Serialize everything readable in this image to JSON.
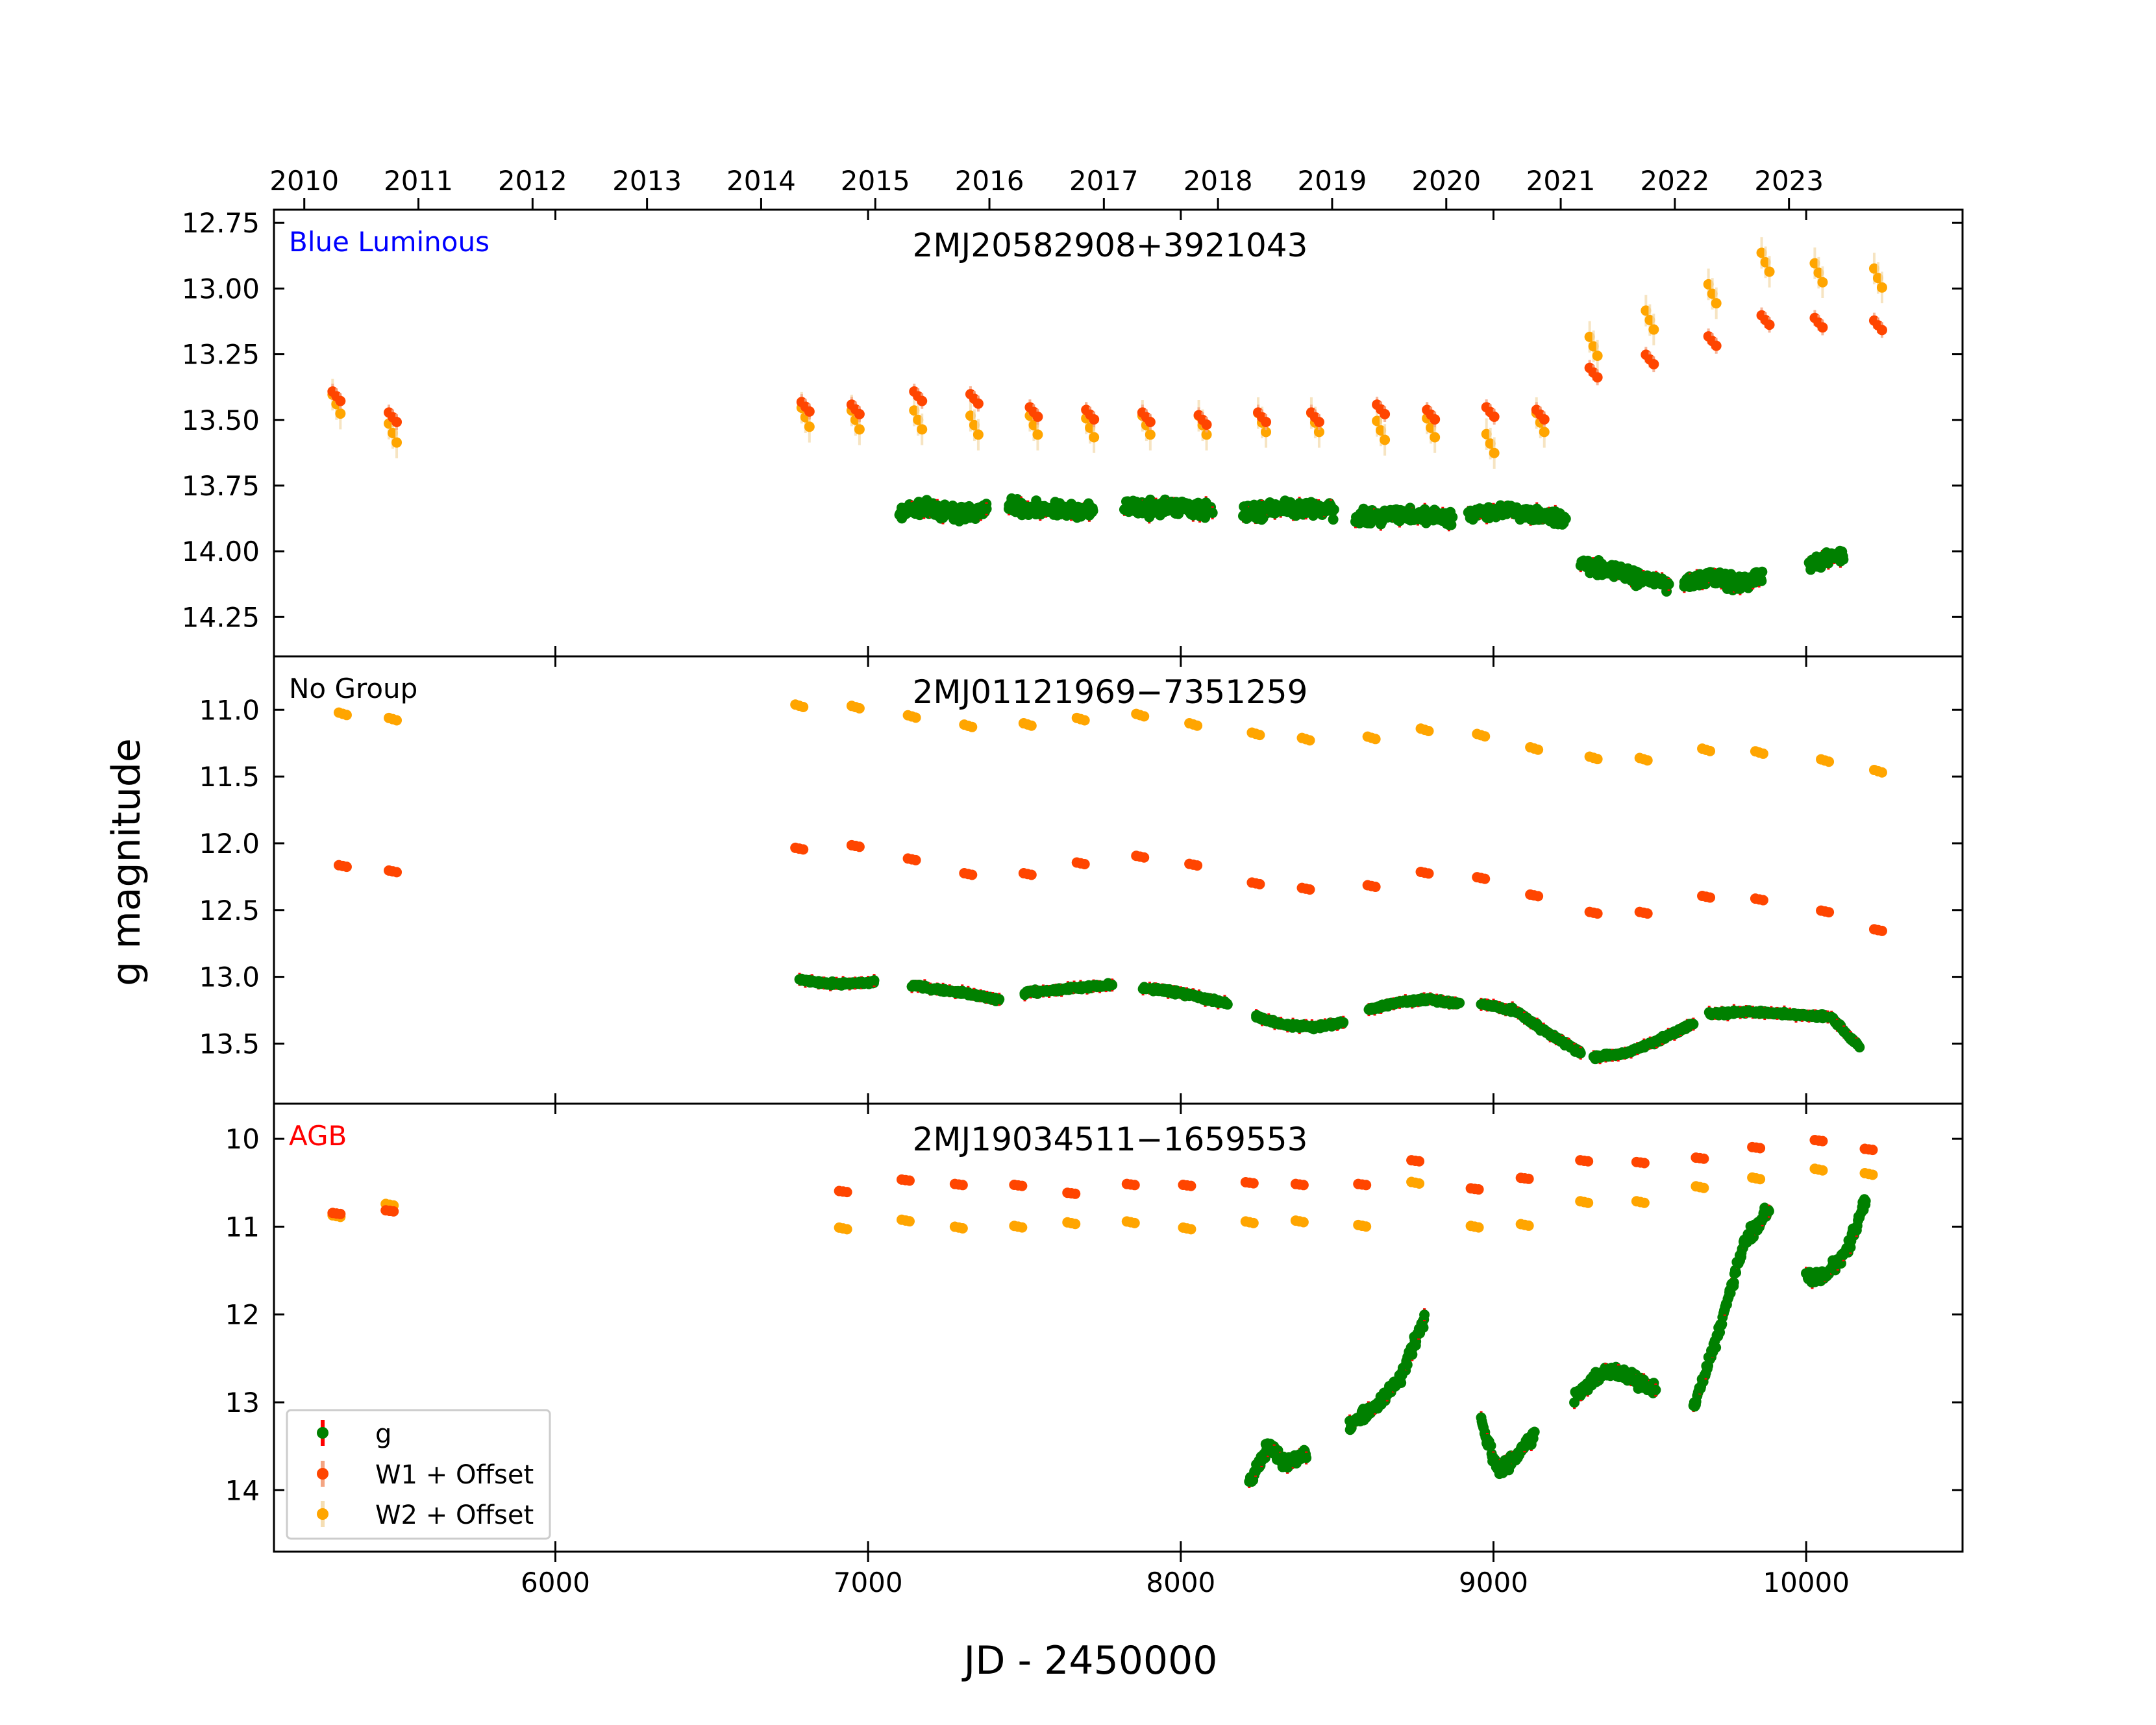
{
  "figure": {
    "xlabel": "JD - 2450000",
    "ylabel": "g magnitude",
    "xlim": [
      5100,
      10500
    ],
    "year_axis": [
      {
        "label": "2010",
        "jd": 5197
      },
      {
        "label": "2011",
        "jd": 5562
      },
      {
        "label": "2012",
        "jd": 5927
      },
      {
        "label": "2013",
        "jd": 6293
      },
      {
        "label": "2014",
        "jd": 6658
      },
      {
        "label": "2015",
        "jd": 7023
      },
      {
        "label": "2016",
        "jd": 7388
      },
      {
        "label": "2017",
        "jd": 7754
      },
      {
        "label": "2018",
        "jd": 8119
      },
      {
        "label": "2019",
        "jd": 8484
      },
      {
        "label": "2020",
        "jd": 8849
      },
      {
        "label": "2021",
        "jd": 9215
      },
      {
        "label": "2022",
        "jd": 9580
      },
      {
        "label": "2023",
        "jd": 9945
      }
    ],
    "x_ticks": [
      {
        "label": "6000",
        "value": 6000
      },
      {
        "label": "7000",
        "value": 7000
      },
      {
        "label": "8000",
        "value": 8000
      },
      {
        "label": "9000",
        "value": 9000
      },
      {
        "label": "10000",
        "value": 10000
      }
    ],
    "legend": {
      "position": "lower-left",
      "entries": [
        {
          "label": "g",
          "color": "#008000"
        },
        {
          "label": "W1 + Offset",
          "color": "#ff4500"
        },
        {
          "label": "W2 + Offset",
          "color": "#ffa500"
        }
      ]
    }
  },
  "chart_data": [
    {
      "type": "scatter",
      "group": "Blue Luminous",
      "group_color": "#0000ff",
      "title": "2MJ20582908+3921043",
      "ylim": [
        14.4,
        12.7
      ],
      "yticks": [
        {
          "label": "12.75",
          "value": 12.75
        },
        {
          "label": "13.00",
          "value": 13.0
        },
        {
          "label": "13.25",
          "value": 13.25
        },
        {
          "label": "13.50",
          "value": 13.5
        },
        {
          "label": "13.75",
          "value": 13.75
        },
        {
          "label": "14.00",
          "value": 14.0
        },
        {
          "label": "14.25",
          "value": 14.25
        }
      ],
      "W1": {
        "x": [
          5300,
          5480,
          6800,
          6960,
          7160,
          7340,
          7530,
          7710,
          7890,
          8070,
          8260,
          8430,
          8640,
          8800,
          8990,
          9150,
          9320,
          9500,
          9700,
          9870,
          10040,
          10230
        ],
        "y": [
          13.41,
          13.49,
          13.45,
          13.46,
          13.41,
          13.42,
          13.47,
          13.48,
          13.49,
          13.5,
          13.49,
          13.49,
          13.46,
          13.48,
          13.47,
          13.48,
          13.32,
          13.27,
          13.2,
          13.12,
          13.13,
          13.14
        ]
      },
      "W2": {
        "x": [
          5300,
          5480,
          6800,
          6960,
          7160,
          7340,
          7530,
          7710,
          7890,
          8070,
          8260,
          8430,
          8640,
          8800,
          8990,
          9150,
          9320,
          9500,
          9700,
          9870,
          10040,
          10230
        ],
        "y": [
          13.44,
          13.55,
          13.49,
          13.5,
          13.5,
          13.52,
          13.52,
          13.53,
          13.52,
          13.52,
          13.51,
          13.51,
          13.54,
          13.53,
          13.59,
          13.51,
          13.22,
          13.12,
          13.02,
          12.9,
          12.94,
          12.96
        ]
      },
      "g_segments": [
        {
          "x0": 7100,
          "x1": 7380,
          "y": [
            13.85,
            13.83,
            13.85,
            13.86,
            13.84
          ]
        },
        {
          "x0": 7450,
          "x1": 7720,
          "y": [
            13.82,
            13.84,
            13.85,
            13.84
          ]
        },
        {
          "x0": 7820,
          "x1": 8100,
          "y": [
            13.83,
            13.84,
            13.83,
            13.85
          ]
        },
        {
          "x0": 8200,
          "x1": 8490,
          "y": [
            13.86,
            13.84,
            13.83,
            13.85
          ]
        },
        {
          "x0": 8560,
          "x1": 8870,
          "y": [
            13.87,
            13.86,
            13.86,
            13.87
          ]
        },
        {
          "x0": 8920,
          "x1": 9230,
          "y": [
            13.86,
            13.84,
            13.86,
            13.88
          ]
        },
        {
          "x0": 9280,
          "x1": 9560,
          "y": [
            14.05,
            14.07,
            14.1,
            14.12
          ]
        },
        {
          "x0": 9610,
          "x1": 9860,
          "y": [
            14.12,
            14.1,
            14.12,
            14.1
          ]
        },
        {
          "x0": 10010,
          "x1": 10120,
          "y": [
            14.05,
            14.03,
            14.02
          ]
        }
      ],
      "g_scatter": 0.03
    },
    {
      "type": "scatter",
      "group": "No Group",
      "group_color": "#000000",
      "title": "2MJ01121969−7351259",
      "ylim": [
        13.95,
        10.6
      ],
      "yticks": [
        {
          "label": "11.0",
          "value": 11.0
        },
        {
          "label": "11.5",
          "value": 11.5
        },
        {
          "label": "12.0",
          "value": 12.0
        },
        {
          "label": "12.5",
          "value": 12.5
        },
        {
          "label": "13.0",
          "value": 13.0
        },
        {
          "label": "13.5",
          "value": 13.5
        }
      ],
      "W1": {
        "x": [
          5320,
          5480,
          6780,
          6960,
          7140,
          7320,
          7510,
          7680,
          7870,
          8040,
          8240,
          8400,
          8610,
          8780,
          8960,
          9130,
          9320,
          9480,
          9680,
          9850,
          10060,
          10230
        ],
        "y": [
          12.17,
          12.21,
          12.04,
          12.02,
          12.12,
          12.23,
          12.23,
          12.15,
          12.1,
          12.16,
          12.3,
          12.34,
          12.32,
          12.22,
          12.26,
          12.39,
          12.52,
          12.52,
          12.4,
          12.42,
          12.51,
          12.65
        ]
      },
      "W2": {
        "x": [
          5320,
          5480,
          6780,
          6960,
          7140,
          7320,
          7510,
          7680,
          7870,
          8040,
          8240,
          8400,
          8610,
          8780,
          8960,
          9130,
          9320,
          9480,
          9680,
          9850,
          10060,
          10230
        ],
        "y": [
          11.03,
          11.07,
          10.97,
          10.98,
          11.05,
          11.12,
          11.11,
          11.07,
          11.04,
          11.11,
          11.18,
          11.22,
          11.21,
          11.15,
          11.19,
          11.29,
          11.36,
          11.37,
          11.3,
          11.32,
          11.38,
          11.46
        ]
      },
      "g_segments": [
        {
          "x0": 6780,
          "x1": 7020,
          "y": [
            13.02,
            13.05,
            13.05,
            13.04
          ]
        },
        {
          "x0": 7140,
          "x1": 7420,
          "y": [
            13.06,
            13.1,
            13.13,
            13.17
          ]
        },
        {
          "x0": 7500,
          "x1": 7780,
          "y": [
            13.12,
            13.1,
            13.08,
            13.06
          ]
        },
        {
          "x0": 7880,
          "x1": 8150,
          "y": [
            13.08,
            13.11,
            13.15,
            13.2
          ]
        },
        {
          "x0": 8240,
          "x1": 8520,
          "y": [
            13.3,
            13.36,
            13.38,
            13.34
          ]
        },
        {
          "x0": 8600,
          "x1": 8890,
          "y": [
            13.25,
            13.19,
            13.17,
            13.2
          ]
        },
        {
          "x0": 8960,
          "x1": 9280,
          "y": [
            13.2,
            13.25,
            13.42,
            13.57
          ]
        },
        {
          "x0": 9320,
          "x1": 9640,
          "y": [
            13.6,
            13.57,
            13.47,
            13.35
          ]
        },
        {
          "x0": 9690,
          "x1": 10070,
          "y": [
            13.28,
            13.26,
            13.28,
            13.3
          ]
        },
        {
          "x0": 10080,
          "x1": 10170,
          "y": [
            13.3,
            13.42,
            13.52
          ]
        }
      ],
      "g_scatter": 0.015
    },
    {
      "type": "scatter",
      "group": "AGB",
      "group_color": "#ff0000",
      "title": "2MJ19034511−1659553",
      "ylim": [
        14.7,
        9.6
      ],
      "yticks": [
        {
          "label": "10",
          "value": 10
        },
        {
          "label": "11",
          "value": 11
        },
        {
          "label": "12",
          "value": 12
        },
        {
          "label": "13",
          "value": 13
        },
        {
          "label": "14",
          "value": 14
        }
      ],
      "W1": {
        "x": [
          5300,
          5470,
          6920,
          7120,
          7290,
          7480,
          7650,
          7840,
          8020,
          8220,
          8380,
          8580,
          8750,
          8940,
          9100,
          9290,
          9470,
          9660,
          9840,
          10040,
          10200
        ],
        "y": [
          10.85,
          10.82,
          10.6,
          10.47,
          10.52,
          10.53,
          10.62,
          10.52,
          10.53,
          10.5,
          10.52,
          10.52,
          10.25,
          10.57,
          10.45,
          10.25,
          10.27,
          10.22,
          10.1,
          10.02,
          10.12
        ]
      },
      "W2": {
        "x": [
          5300,
          5470,
          6920,
          7120,
          7290,
          7480,
          7650,
          7840,
          8020,
          8220,
          8380,
          8580,
          8750,
          8940,
          9100,
          9290,
          9470,
          9660,
          9840,
          10040,
          10200
        ],
        "y": [
          10.88,
          10.75,
          11.02,
          10.93,
          11.01,
          11.0,
          10.96,
          10.95,
          11.02,
          10.95,
          10.94,
          10.99,
          10.5,
          11.0,
          10.98,
          10.72,
          10.72,
          10.55,
          10.45,
          10.35,
          10.4
        ]
      },
      "g_segments": [
        {
          "x0": 8220,
          "x1": 8400,
          "y": [
            13.9,
            13.5,
            13.7,
            13.6
          ]
        },
        {
          "x0": 8540,
          "x1": 8780,
          "y": [
            13.25,
            13.05,
            12.75,
            12.05
          ]
        },
        {
          "x0": 8960,
          "x1": 9130,
          "y": [
            13.2,
            13.8,
            13.6,
            13.35
          ]
        },
        {
          "x0": 9260,
          "x1": 9520,
          "y": [
            12.95,
            12.65,
            12.7,
            12.85
          ]
        },
        {
          "x0": 9640,
          "x1": 9880,
          "y": [
            13.05,
            12.2,
            11.2,
            10.8
          ]
        },
        {
          "x0": 10000,
          "x1": 10190,
          "y": [
            11.6,
            11.55,
            11.3,
            10.7
          ]
        }
      ],
      "g_scatter": 0.08
    }
  ]
}
